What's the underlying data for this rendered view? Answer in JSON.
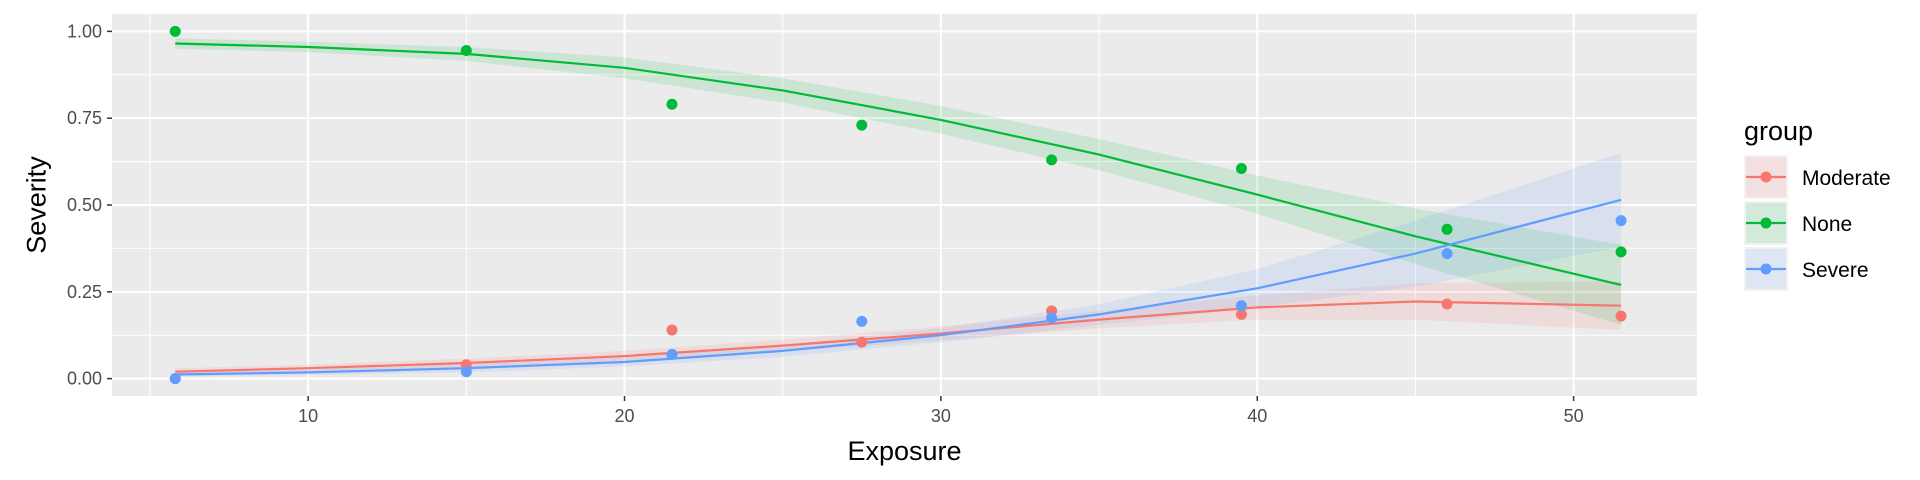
{
  "chart_data": {
    "type": "scatter",
    "xlabel": "Exposure",
    "ylabel": "Severity",
    "xlim": [
      3.8,
      53.9
    ],
    "ylim": [
      -0.05,
      1.05
    ],
    "x_ticks": [
      10,
      20,
      30,
      40,
      50
    ],
    "x_tick_labels": [
      "10",
      "20",
      "30",
      "40",
      "50"
    ],
    "y_ticks": [
      0,
      0.25,
      0.5,
      0.75,
      1.0
    ],
    "y_tick_labels": [
      "0.00",
      "0.25",
      "0.50",
      "0.75",
      "1.00"
    ],
    "grid": true,
    "legend": {
      "title": "group",
      "position": "right"
    },
    "series": [
      {
        "name": "Moderate",
        "color": "#F8766D",
        "points": [
          [
            5.8,
            0.0
          ],
          [
            15.0,
            0.04
          ],
          [
            21.5,
            0.14
          ],
          [
            27.5,
            0.105
          ],
          [
            33.5,
            0.195
          ],
          [
            39.5,
            0.185
          ],
          [
            46.0,
            0.215
          ],
          [
            51.5,
            0.18
          ]
        ],
        "fit_x": [
          5.8,
          10,
          15,
          20,
          25,
          30,
          35,
          40,
          45,
          51.5
        ],
        "fit_y": [
          0.02,
          0.03,
          0.045,
          0.065,
          0.095,
          0.13,
          0.17,
          0.205,
          0.222,
          0.21
        ],
        "band_lo": [
          0.01,
          0.02,
          0.032,
          0.05,
          0.078,
          0.11,
          0.145,
          0.17,
          0.17,
          0.14
        ],
        "band_hi": [
          0.03,
          0.04,
          0.058,
          0.08,
          0.112,
          0.15,
          0.195,
          0.24,
          0.275,
          0.28
        ]
      },
      {
        "name": "None",
        "color": "#00BA38",
        "points": [
          [
            5.8,
            1.0
          ],
          [
            15.0,
            0.945
          ],
          [
            21.5,
            0.79
          ],
          [
            27.5,
            0.73
          ],
          [
            33.5,
            0.63
          ],
          [
            39.5,
            0.605
          ],
          [
            46.0,
            0.43
          ],
          [
            51.5,
            0.365
          ]
        ],
        "fit_x": [
          5.8,
          10,
          15,
          20,
          25,
          30,
          35,
          40,
          45,
          51.5
        ],
        "fit_y": [
          0.965,
          0.955,
          0.935,
          0.895,
          0.83,
          0.745,
          0.645,
          0.53,
          0.41,
          0.27
        ],
        "band_lo": [
          0.95,
          0.94,
          0.915,
          0.865,
          0.795,
          0.705,
          0.6,
          0.475,
          0.33,
          0.155
        ],
        "band_hi": [
          0.98,
          0.97,
          0.955,
          0.925,
          0.865,
          0.785,
          0.69,
          0.585,
          0.49,
          0.385
        ]
      },
      {
        "name": "Severe",
        "color": "#619CFF",
        "points": [
          [
            5.8,
            0.0
          ],
          [
            15.0,
            0.02
          ],
          [
            21.5,
            0.07
          ],
          [
            27.5,
            0.165
          ],
          [
            33.5,
            0.175
          ],
          [
            39.5,
            0.21
          ],
          [
            46.0,
            0.36
          ],
          [
            51.5,
            0.455
          ]
        ],
        "fit_x": [
          5.8,
          10,
          15,
          20,
          25,
          30,
          35,
          40,
          45,
          51.5
        ],
        "fit_y": [
          0.012,
          0.018,
          0.03,
          0.048,
          0.08,
          0.125,
          0.185,
          0.26,
          0.36,
          0.515
        ],
        "band_lo": [
          0.005,
          0.01,
          0.018,
          0.035,
          0.063,
          0.105,
          0.155,
          0.205,
          0.265,
          0.38
        ],
        "band_hi": [
          0.019,
          0.026,
          0.042,
          0.061,
          0.097,
          0.145,
          0.215,
          0.315,
          0.455,
          0.65
        ]
      }
    ]
  }
}
